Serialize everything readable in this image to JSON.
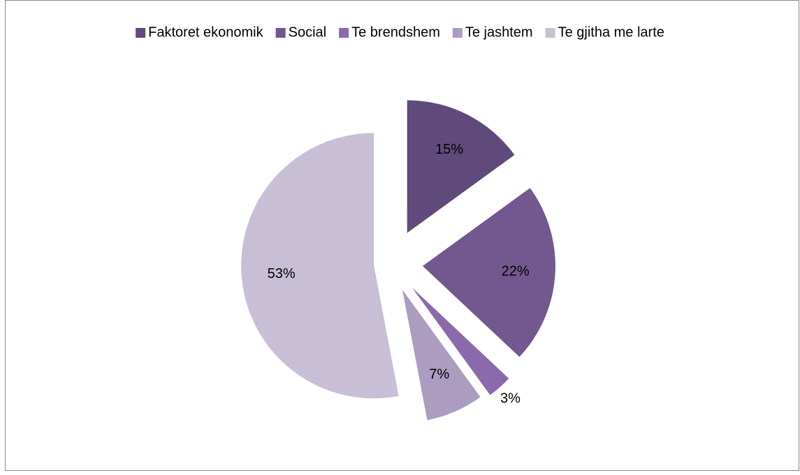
{
  "chart_data": {
    "type": "pie",
    "categories": [
      "Faktoret ekonomik",
      "Social",
      "Te brendshem",
      "Te jashtem",
      "Te gjitha me larte"
    ],
    "values": [
      15,
      22,
      3,
      7,
      53
    ],
    "value_labels": [
      "15%",
      "22%",
      "3%",
      "7%",
      "53%"
    ],
    "colors": [
      "#5f4a7b",
      "#72588f",
      "#8a6aac",
      "#ab9cc0",
      "#c8bfd6"
    ],
    "legend": "top"
  }
}
